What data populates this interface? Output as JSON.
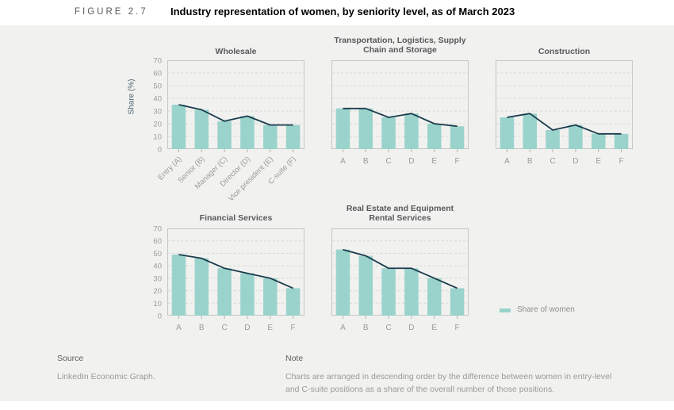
{
  "figure": {
    "label": "FIGURE 2.7",
    "title": "Industry representation of women, by seniority level, as of March 2023"
  },
  "y_axis_label": "Share (%)",
  "legend": {
    "label": "Share of women",
    "color": "#9ad3cb"
  },
  "colors": {
    "bar": "#9ad3cb",
    "line": "#1b3c4d",
    "plot_border": "#c6c6c4",
    "gridline": "#d8d8d5",
    "tick_mark": "#b3b3b3",
    "tick_label": "#9b9b9b",
    "panel_bg": "#f1f1ef"
  },
  "footer": {
    "source_heading": "Source",
    "source_text": "LinkedIn Economic Graph.",
    "note_heading": "Note",
    "note_text": "Charts are arranged in descending order by  the difference between women in entry-level\nand C-suite positions as a share of the overall number of those positions."
  },
  "chart_data": [
    {
      "type": "bar",
      "title": "Wholesale",
      "categories": [
        "Entry (A)",
        "Senior (B)",
        "Manager (C)",
        "Director (D)",
        "Vice president (E)",
        "C-suite (F)"
      ],
      "values": [
        35,
        31,
        22,
        26,
        19,
        19
      ],
      "line_overlay_values": [
        35,
        31,
        22,
        26,
        19,
        19
      ],
      "ylabel": "Share (%)",
      "ylim": [
        0,
        70
      ],
      "yticks": [
        0,
        10,
        20,
        30,
        40,
        50,
        60,
        70
      ],
      "grid": "dashed-horizontal",
      "show_ytick_labels": true,
      "rotated_x_labels": true
    },
    {
      "type": "bar",
      "title": "Transportation, Logistics, Supply\nChain and Storage",
      "categories": [
        "A",
        "B",
        "C",
        "D",
        "E",
        "F"
      ],
      "values": [
        32,
        32,
        25,
        28,
        20,
        18
      ],
      "line_overlay_values": [
        32,
        32,
        25,
        28,
        20,
        18
      ],
      "ylim": [
        0,
        70
      ],
      "yticks": [
        0,
        10,
        20,
        30,
        40,
        50,
        60,
        70
      ],
      "grid": "dashed-horizontal",
      "show_ytick_labels": false,
      "rotated_x_labels": false
    },
    {
      "type": "bar",
      "title": "Construction",
      "categories": [
        "A",
        "B",
        "C",
        "D",
        "E",
        "F"
      ],
      "values": [
        25,
        28,
        15,
        19,
        12,
        12
      ],
      "line_overlay_values": [
        25,
        28,
        15,
        19,
        12,
        12
      ],
      "ylim": [
        0,
        70
      ],
      "yticks": [
        0,
        10,
        20,
        30,
        40,
        50,
        60,
        70
      ],
      "grid": "dashed-horizontal",
      "show_ytick_labels": false,
      "rotated_x_labels": false
    },
    {
      "type": "bar",
      "title": "Financial Services",
      "categories": [
        "A",
        "B",
        "C",
        "D",
        "E",
        "F"
      ],
      "values": [
        49,
        46,
        38,
        34,
        30,
        22
      ],
      "line_overlay_values": [
        49,
        46,
        38,
        34,
        30,
        22
      ],
      "ylim": [
        0,
        70
      ],
      "yticks": [
        0,
        10,
        20,
        30,
        40,
        50,
        60,
        70
      ],
      "grid": "dashed-horizontal",
      "show_ytick_labels": true,
      "rotated_x_labels": false
    },
    {
      "type": "bar",
      "title": "Real Estate and Equipment\nRental Services",
      "categories": [
        "A",
        "B",
        "C",
        "D",
        "E",
        "F"
      ],
      "values": [
        53,
        48,
        38,
        38,
        30,
        22
      ],
      "line_overlay_values": [
        53,
        48,
        38,
        38,
        30,
        22
      ],
      "ylim": [
        0,
        70
      ],
      "yticks": [
        0,
        10,
        20,
        30,
        40,
        50,
        60,
        70
      ],
      "grid": "dashed-horizontal",
      "show_ytick_labels": false,
      "rotated_x_labels": false
    }
  ]
}
